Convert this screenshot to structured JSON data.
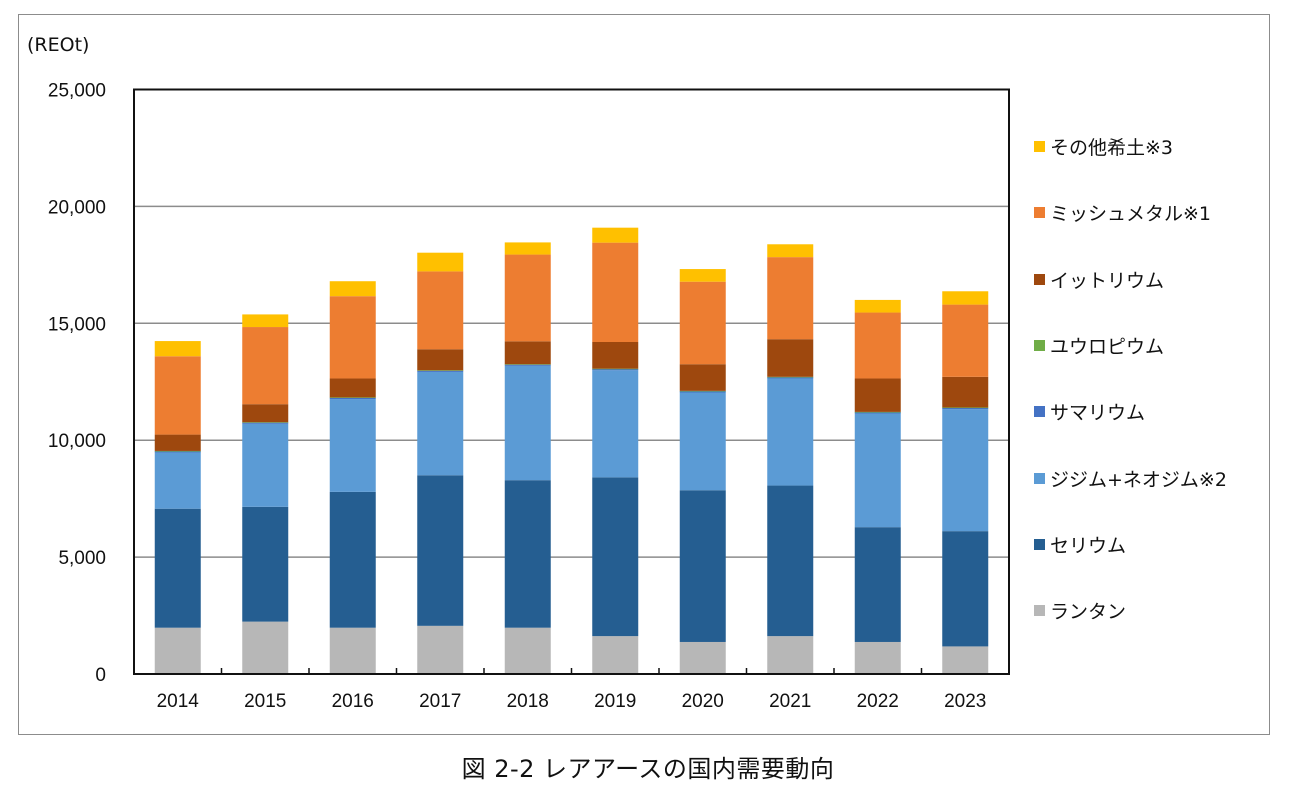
{
  "chart_data": {
    "type": "bar",
    "stacked": true,
    "title": "",
    "caption": "図 2-2  レアアースの国内需要動向",
    "ylabel": "(REOt)",
    "xlabel": "",
    "ylim": [
      0,
      25000
    ],
    "yticks": [
      0,
      5000,
      10000,
      15000,
      20000,
      25000
    ],
    "ytick_labels": [
      "0",
      "5,000",
      "10,000",
      "15,000",
      "20,000",
      "25,000"
    ],
    "grid": true,
    "legend_position": "right",
    "categories": [
      "2014",
      "2015",
      "2016",
      "2017",
      "2018",
      "2019",
      "2020",
      "2021",
      "2022",
      "2023"
    ],
    "series": [
      {
        "name": "ランタン",
        "color": "#b7b7b7",
        "values": [
          1980,
          2240,
          1980,
          2060,
          1980,
          1620,
          1370,
          1620,
          1370,
          1180
        ]
      },
      {
        "name": "セリウム",
        "color": "#255e91",
        "values": [
          5090,
          4910,
          5810,
          6440,
          6310,
          6790,
          6490,
          6440,
          4910,
          4930
        ]
      },
      {
        "name": "ジジム+ネオジム※2",
        "color": "#5b9bd5",
        "values": [
          2400,
          3550,
          3970,
          4420,
          4890,
          4580,
          4180,
          4580,
          4860,
          5220
        ]
      },
      {
        "name": "サマリウム",
        "color": "#4472c4",
        "values": [
          60,
          60,
          60,
          60,
          60,
          60,
          60,
          60,
          60,
          60
        ]
      },
      {
        "name": "ユウロピウム",
        "color": "#70ad47",
        "values": [
          10,
          10,
          10,
          10,
          10,
          10,
          10,
          10,
          10,
          10
        ]
      },
      {
        "name": "イットリウム",
        "color": "#9e480e",
        "values": [
          700,
          770,
          810,
          900,
          980,
          1140,
          1140,
          1610,
          1430,
          1310
        ]
      },
      {
        "name": "ミッシュメタル※1",
        "color": "#ed7d31",
        "values": [
          3350,
          3300,
          3520,
          3330,
          3710,
          4250,
          3530,
          3510,
          2820,
          3090
        ]
      },
      {
        "name": "その他希土※3",
        "color": "#ffc000",
        "values": [
          650,
          540,
          640,
          800,
          520,
          640,
          540,
          550,
          540,
          570
        ]
      }
    ]
  }
}
